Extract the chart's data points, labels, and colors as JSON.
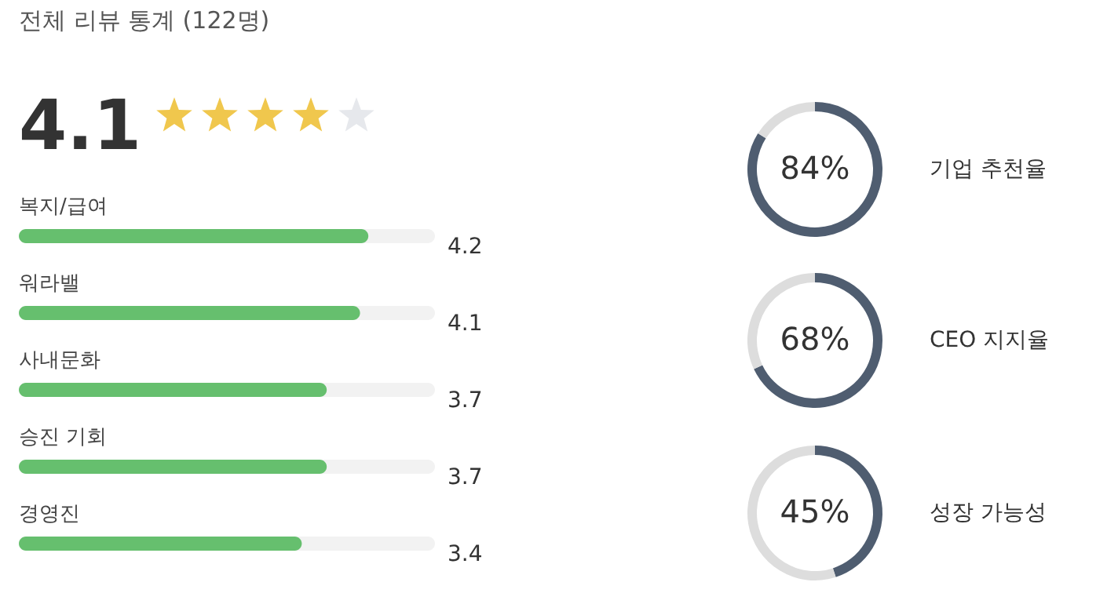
{
  "chart_data": [
    {
      "type": "bar",
      "orientation": "horizontal",
      "title": "전체 리뷰 통계 (122명)",
      "annotations": [
        "4.1"
      ],
      "categories": [
        "복지/급여",
        "워라밸",
        "사내문화",
        "승진 기회",
        "경영진"
      ],
      "values": [
        4.2,
        4.1,
        3.7,
        3.7,
        3.4
      ],
      "color": "#66bf6e",
      "xlim": [
        0,
        5
      ],
      "tick_labels": false,
      "value_labels": [
        "4.2",
        "4.1",
        "3.7",
        "3.7",
        "3.4"
      ]
    },
    {
      "type": "donut",
      "title": "기업 추천율",
      "categories": [
        null,
        null
      ],
      "values": [
        84,
        16
      ],
      "colors": [
        "#4f5d70",
        "#dddddd"
      ],
      "value_labels": [
        "84%",
        null
      ]
    },
    {
      "type": "donut",
      "title": "CEO 지지율",
      "categories": [
        null,
        null
      ],
      "values": [
        68,
        32
      ],
      "colors": [
        "#4f5d70",
        "#dddddd"
      ],
      "value_labels": [
        "68%",
        null
      ]
    },
    {
      "type": "donut",
      "title": "성장 가능성",
      "categories": [
        null,
        null
      ],
      "values": [
        45,
        55
      ],
      "colors": [
        "#4f5d70",
        "#dddddd"
      ],
      "value_labels": [
        "45%",
        null
      ]
    }
  ]
}
